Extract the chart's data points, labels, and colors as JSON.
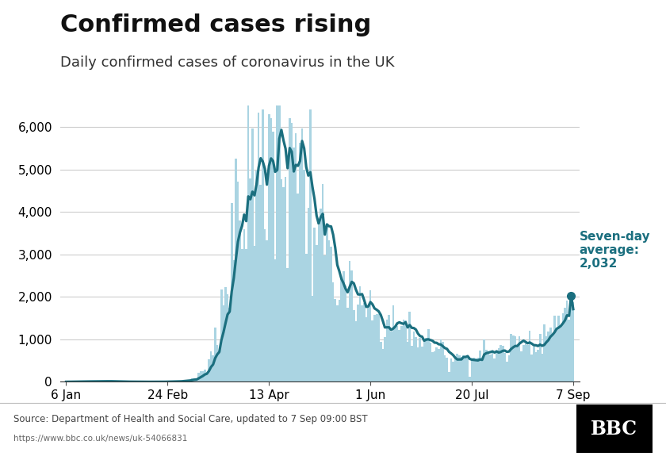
{
  "title": "Confirmed cases rising",
  "subtitle": "Daily confirmed cases of coronavirus in the UK",
  "source_text": "Source: Department of Health and Social Care, updated to 7 Sep 09:00 BST",
  "url_text": "https://www.bbc.co.uk/news/uk-54066831",
  "annotation_line1": "Seven-day",
  "annotation_line2": "average:",
  "annotation_line3": "2,032",
  "annotation_value": 2032,
  "bar_color": "#aad4e2",
  "line_color": "#1b6f7f",
  "annotation_color": "#1b6f7f",
  "dot_color": "#1b6f7f",
  "background_color": "#ffffff",
  "ylim": [
    0,
    6500
  ],
  "yticks": [
    0,
    1000,
    2000,
    3000,
    4000,
    5000,
    6000
  ],
  "ytick_labels": [
    "0",
    "1,000",
    "2,000",
    "3,000",
    "4,000",
    "5,000",
    "6,000"
  ],
  "xtick_labels": [
    "6 Jan",
    "24 Feb",
    "13 Apr",
    "1 Jun",
    "20 Jul",
    "7 Sep"
  ],
  "title_fontsize": 22,
  "subtitle_fontsize": 13,
  "tick_fontsize": 11,
  "grid_color": "#cccccc",
  "footer_line_color": "#bbbbbb"
}
